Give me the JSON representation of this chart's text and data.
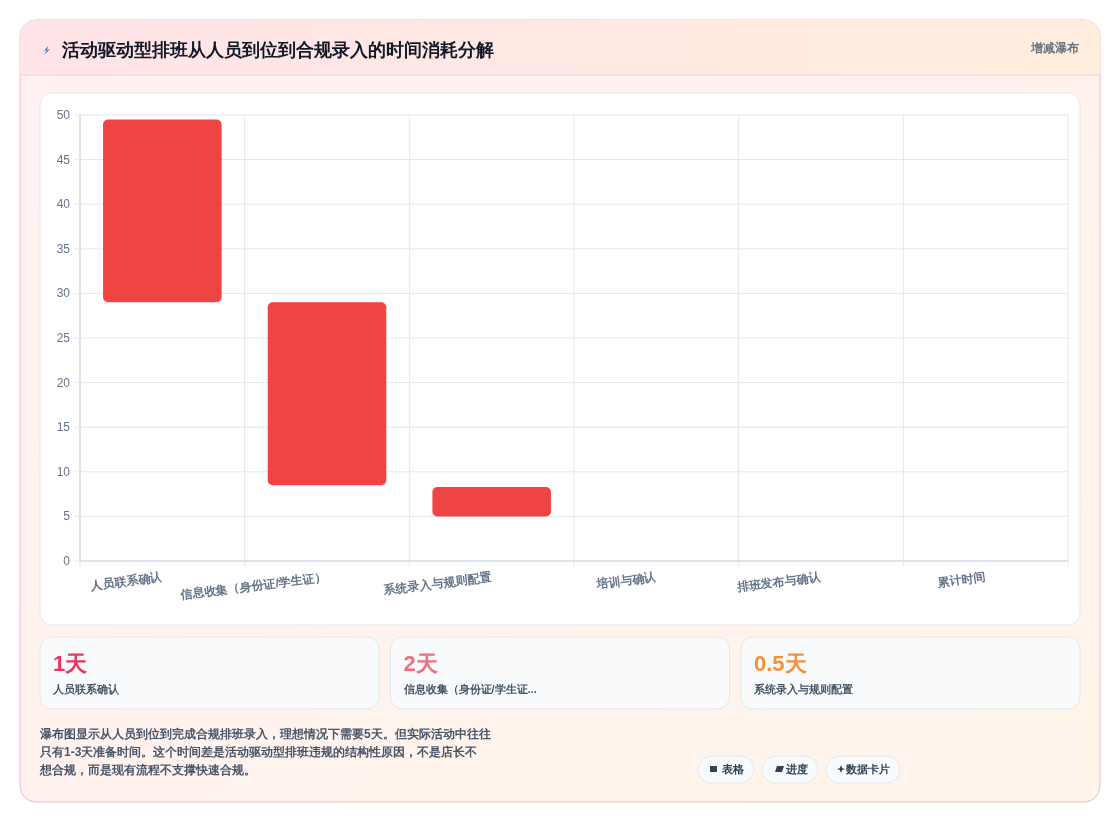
{
  "chart_data": {
    "type": "bar",
    "title": "活动驱动型排班从人员到位到合规录入的时间消耗分解",
    "categories": [
      "人员联系确认",
      "信息收集（身份证/学生证）",
      "系统录入与规则配置",
      "培训与确认",
      "排班发布与确认",
      "累计时间"
    ],
    "values": [
      20.5,
      20.5,
      3.3,
      null,
      null,
      null
    ],
    "base": [
      29,
      8.5,
      5,
      null,
      null,
      null
    ],
    "color": "#ef4444",
    "ylim": [
      0,
      50
    ],
    "yticks": [
      0,
      5,
      10,
      15,
      20,
      25,
      30,
      35,
      40,
      45,
      50
    ],
    "grid": true,
    "annotations": [
      "增减瀑布",
      "1天",
      "人员联系确认",
      "2天",
      "信息收集（身份证/学生证...",
      "0.5天",
      "系统录入与规则配置",
      "瀑布图显示从人员到位到完成合规排班录入，理想情况下需要5天。但实际活动中往往只有1-3天准备时间。这个时间差是活动驱动型排班违规的结构性原因，不是店长不想合规，而是现有流程不支撑快速合规。",
      "表格",
      "进度",
      "数据卡片"
    ]
  }
}
